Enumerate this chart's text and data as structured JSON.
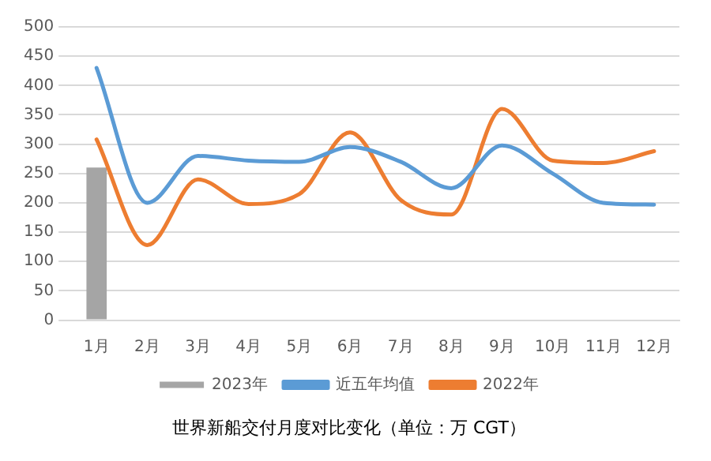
{
  "chart_data": {
    "type": "bar",
    "title": "世界新船交付月度对比变化（单位：万 CGT）",
    "categories": [
      "1月",
      "2月",
      "3月",
      "4月",
      "5月",
      "6月",
      "7月",
      "8月",
      "9月",
      "10月",
      "11月",
      "12月"
    ],
    "series": [
      {
        "name": "2023年",
        "color": "#a5a5a5",
        "values": [
          260,
          null,
          null,
          null,
          null,
          null,
          null,
          null,
          null,
          null,
          null,
          null
        ]
      },
      {
        "name": "近五年均值",
        "type": "line",
        "color": "#5b9bd5",
        "values": [
          430,
          200,
          280,
          272,
          270,
          295,
          270,
          225,
          298,
          250,
          200,
          197
        ]
      },
      {
        "name": "2022年",
        "type": "line",
        "color": "#ed7d31",
        "values": [
          308,
          128,
          240,
          198,
          215,
          320,
          205,
          180,
          360,
          272,
          268,
          288
        ]
      }
    ],
    "ylim": [
      0,
      500
    ],
    "yticks": [
      0,
      50,
      100,
      150,
      200,
      250,
      300,
      350,
      400,
      450,
      500
    ],
    "grid": "y",
    "legend": "bottom",
    "marker": "none"
  }
}
